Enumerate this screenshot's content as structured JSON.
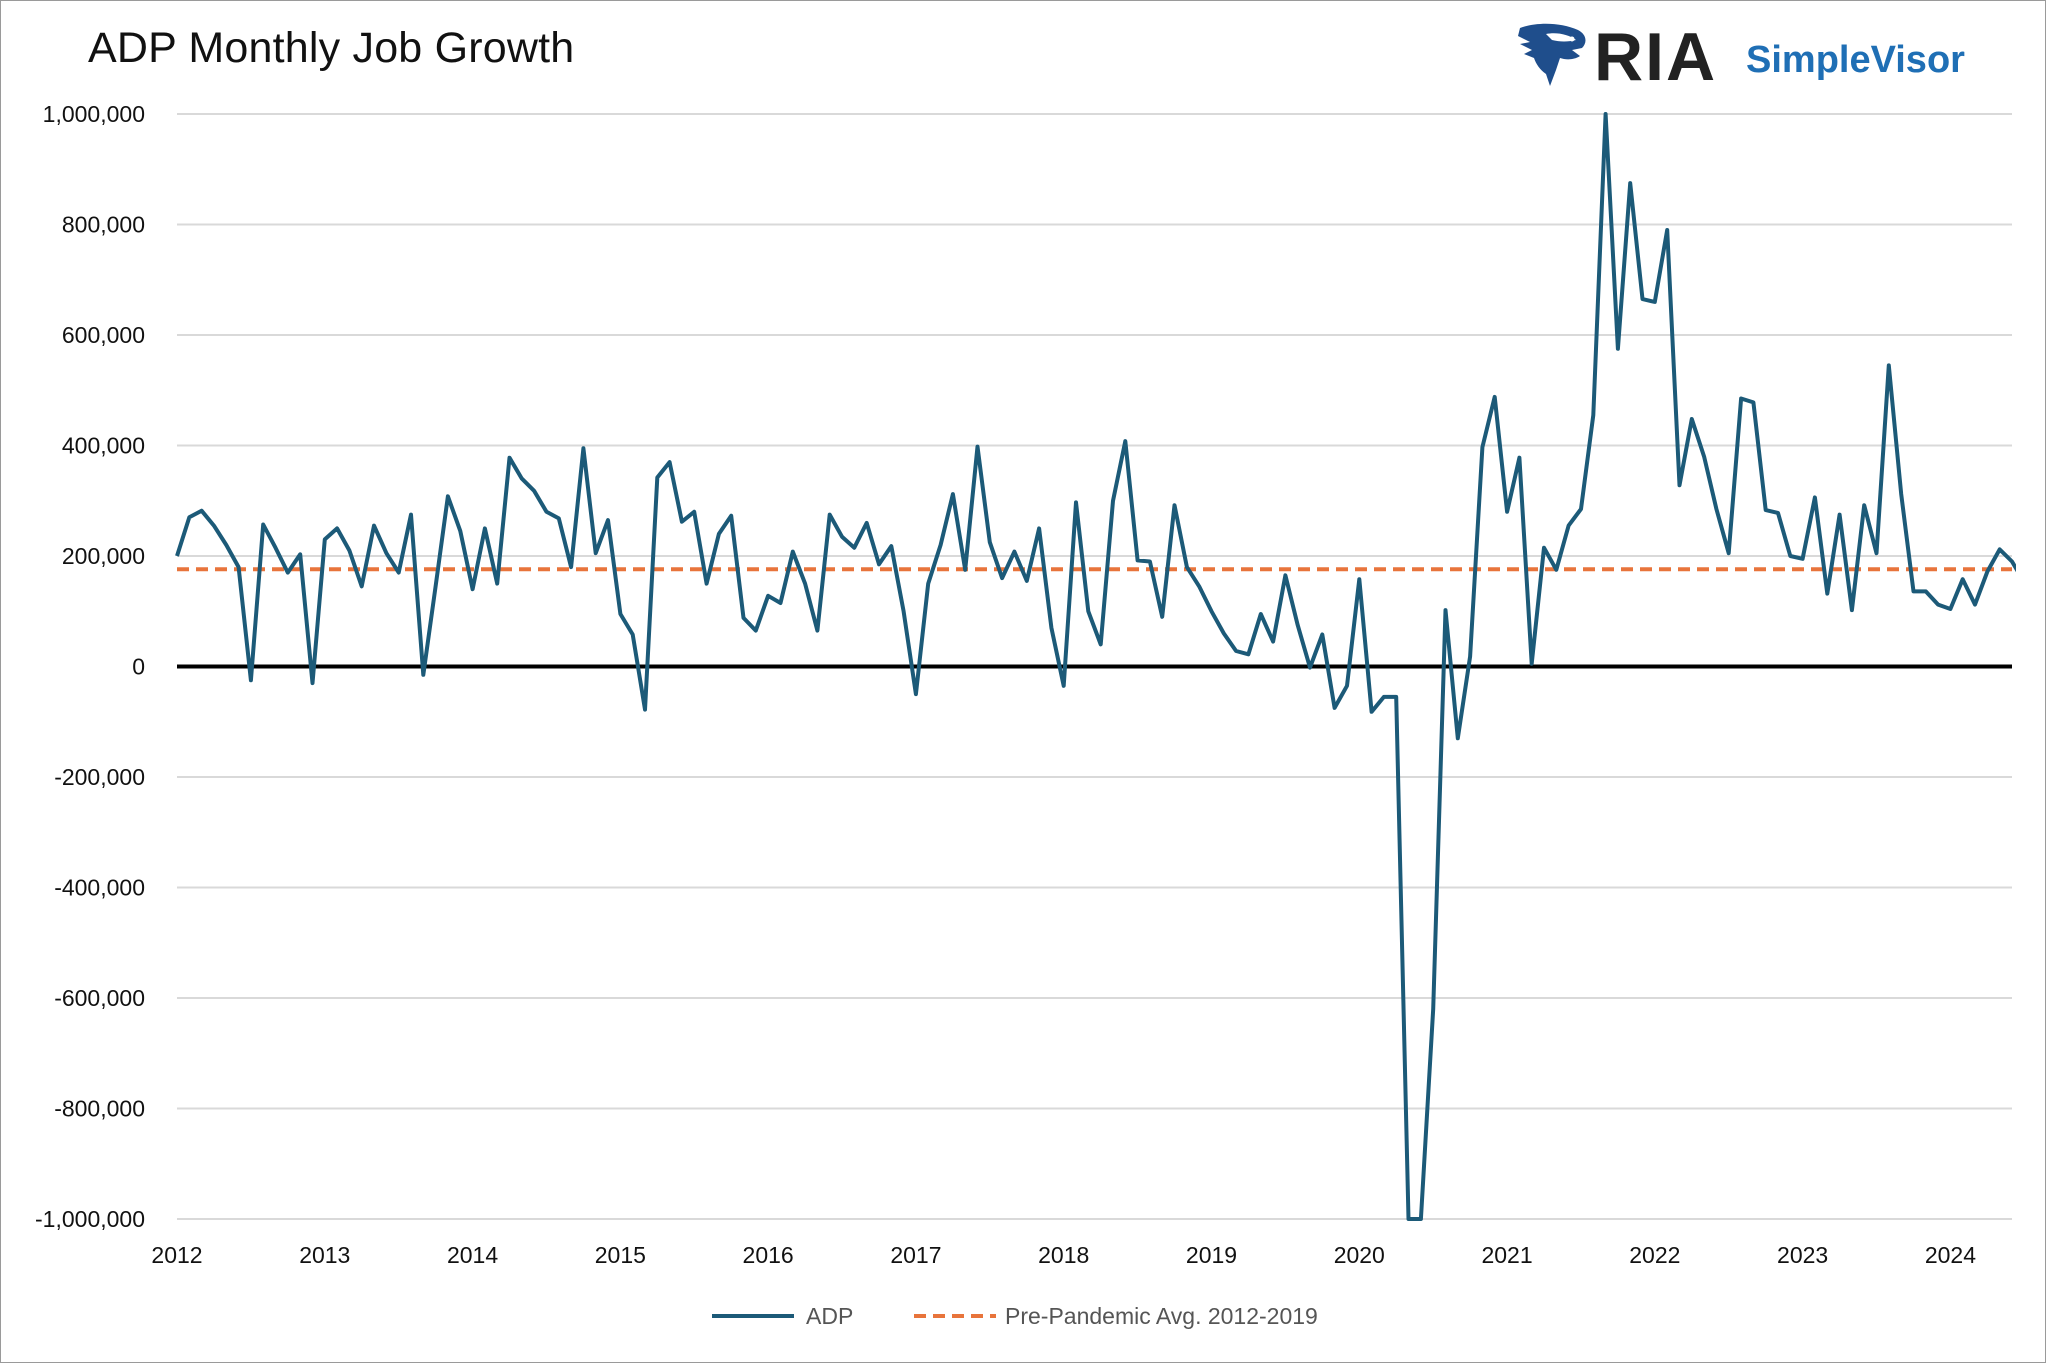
{
  "chart_title": "ADP Monthly Job Growth",
  "logo": {
    "brand": "RIA",
    "product": "SimpleVisor",
    "brand_color": "#222222",
    "product_color": "#1f6fb5",
    "mark_color": "#1f4e8c"
  },
  "colors": {
    "adp_line": "#1c5a78",
    "avg_line": "#e8743b",
    "zero_line": "#000000",
    "grid": "#d9d9d9"
  },
  "chart_data": {
    "type": "line",
    "title": "ADP Monthly Job Growth",
    "xlabel": "",
    "ylabel": "",
    "x_start": "2012-01",
    "x_end": "2024-05",
    "xlim": [
      2012.0,
      2024.4167
    ],
    "ylim": [
      -1000000,
      1000000
    ],
    "y_ticks": [
      1000000,
      800000,
      600000,
      400000,
      200000,
      0,
      -200000,
      -400000,
      -600000,
      -800000,
      -1000000
    ],
    "y_tick_labels": [
      "1,000,000",
      "800,000",
      "600,000",
      "400,000",
      "200,000",
      "0",
      "-200,000",
      "-400,000",
      "-600,000",
      "-800,000",
      "-1,000,000"
    ],
    "x_ticks": [
      2012,
      2013,
      2014,
      2015,
      2016,
      2017,
      2018,
      2019,
      2020,
      2021,
      2022,
      2023,
      2024
    ],
    "x_tick_labels": [
      "2012",
      "2013",
      "2014",
      "2015",
      "2016",
      "2017",
      "2018",
      "2019",
      "2020",
      "2021",
      "2022",
      "2023",
      "2024"
    ],
    "grid": true,
    "legend_position": "bottom-center",
    "series": [
      {
        "name": "ADP",
        "style": "solid",
        "frequency": "monthly",
        "values": [
          200000,
          270000,
          282000,
          255000,
          220000,
          180000,
          -25000,
          257000,
          215000,
          170000,
          203000,
          -30000,
          230000,
          250000,
          210000,
          145000,
          255000,
          205000,
          170000,
          275000,
          -15000,
          145000,
          308000,
          245000,
          140000,
          250000,
          150000,
          378000,
          340000,
          318000,
          280000,
          268000,
          180000,
          395000,
          205000,
          265000,
          95000,
          58000,
          -78000,
          342000,
          370000,
          262000,
          280000,
          150000,
          240000,
          273000,
          88000,
          65000,
          128000,
          115000,
          208000,
          150000,
          65000,
          275000,
          235000,
          215000,
          260000,
          185000,
          218000,
          100000,
          -50000,
          150000,
          220000,
          312000,
          175000,
          398000,
          225000,
          160000,
          208000,
          155000,
          250000,
          70000,
          -35000,
          297000,
          100000,
          40000,
          300000,
          408000,
          192000,
          190000,
          90000,
          292000,
          180000,
          145000,
          100000,
          60000,
          28000,
          22000,
          95000,
          45000,
          165000,
          75000,
          -2000,
          58000,
          -75000,
          -35000,
          158000,
          -82000,
          -55000,
          -55000,
          -1000000,
          -1000000,
          -620000,
          102000,
          -130000,
          18000,
          397000,
          488000,
          280000,
          378000,
          5000,
          215000,
          175000,
          255000,
          285000,
          455000,
          1000000,
          575000,
          875000,
          665000,
          660000,
          790000,
          328000,
          448000,
          380000,
          285000,
          205000,
          485000,
          478000,
          283000,
          278000,
          200000,
          195000,
          306000,
          132000,
          275000,
          102000,
          292000,
          205000,
          545000,
          312000,
          136000,
          136000,
          112000,
          104000,
          158000,
          112000,
          172000,
          212000,
          190000,
          152000
        ]
      },
      {
        "name": "Pre-Pandemic Avg. 2012-2019",
        "style": "dashed",
        "constant_value": 176000
      }
    ]
  }
}
